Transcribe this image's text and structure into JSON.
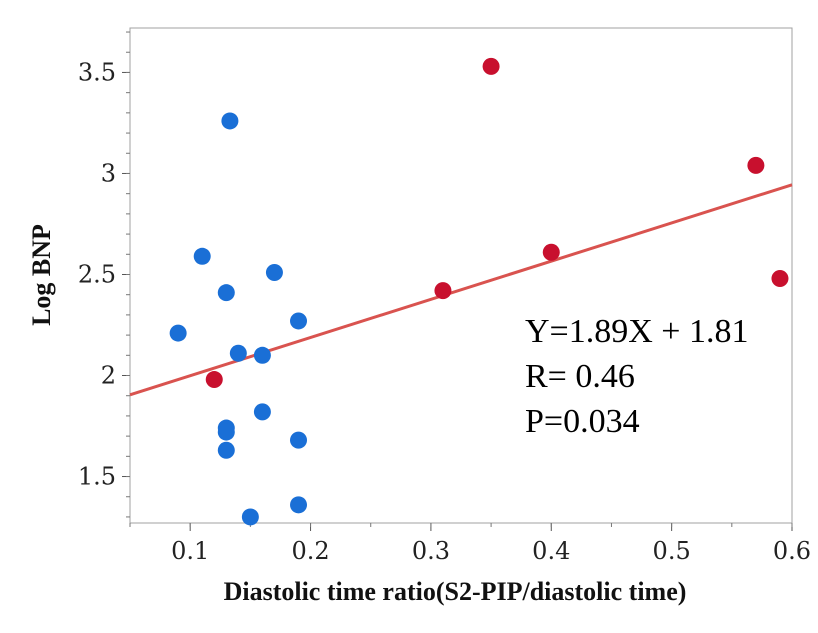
{
  "chart_data": {
    "type": "scatter",
    "title": "",
    "xlabel": "Diastolic time ratio(S2-PIP/diastolic time)",
    "ylabel": "Log BNP",
    "xlim": [
      0.05,
      0.6
    ],
    "ylim": [
      1.27,
      3.72
    ],
    "xticks": [
      {
        "value": 0.1,
        "label": "0.1"
      },
      {
        "value": 0.2,
        "label": "0.2"
      },
      {
        "value": 0.3,
        "label": "0.3"
      },
      {
        "value": 0.4,
        "label": "0.4"
      },
      {
        "value": 0.5,
        "label": "0.5"
      },
      {
        "value": 0.6,
        "label": "0.6"
      }
    ],
    "yticks": [
      {
        "value": 1.5,
        "label": "1.5"
      },
      {
        "value": 2.0,
        "label": "2"
      },
      {
        "value": 2.5,
        "label": "2.5"
      },
      {
        "value": 3.0,
        "label": "3"
      },
      {
        "value": 3.5,
        "label": "3.5"
      }
    ],
    "grid": false,
    "series": [
      {
        "color": "#1a6fd6",
        "points": [
          [
            0.133,
            3.26
          ],
          [
            0.11,
            2.59
          ],
          [
            0.17,
            2.51
          ],
          [
            0.13,
            2.41
          ],
          [
            0.09,
            2.21
          ],
          [
            0.19,
            2.27
          ],
          [
            0.14,
            2.11
          ],
          [
            0.16,
            2.1
          ],
          [
            0.16,
            1.82
          ],
          [
            0.13,
            1.74
          ],
          [
            0.13,
            1.72
          ],
          [
            0.19,
            1.68
          ],
          [
            0.13,
            1.63
          ],
          [
            0.19,
            1.36
          ],
          [
            0.15,
            1.3
          ]
        ]
      },
      {
        "color": "#c8102e",
        "points": [
          [
            0.35,
            3.53
          ],
          [
            0.57,
            3.04
          ],
          [
            0.4,
            2.61
          ],
          [
            0.59,
            2.48
          ],
          [
            0.31,
            2.42
          ],
          [
            0.12,
            1.98
          ]
        ]
      }
    ],
    "regression": {
      "slope": 1.89,
      "intercept": 1.81,
      "color": "#d9534f"
    },
    "annotations": [
      "Y=1.89X + 1.81",
      "R= 0.46",
      "P=0.034"
    ]
  }
}
